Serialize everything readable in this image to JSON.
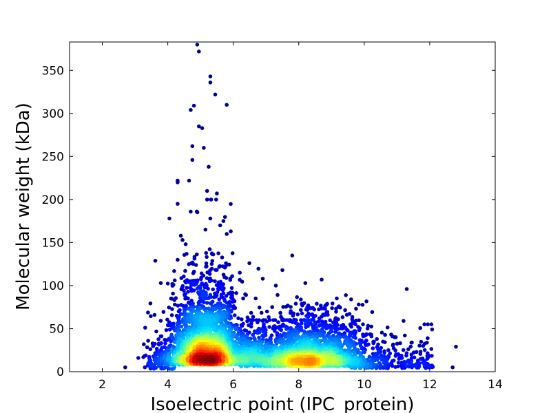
{
  "chart_data": {
    "type": "scatter",
    "title": "",
    "xlabel": "Isoelectric point (IPC_protein)",
    "ylabel": "Molecular weight (kDa)",
    "xlim": [
      1,
      14
    ],
    "ylim": [
      0,
      383
    ],
    "xticks": [
      "2",
      "4",
      "6",
      "8",
      "10",
      "12",
      "14"
    ],
    "yticks": [
      "0",
      "50",
      "100",
      "150",
      "200",
      "250",
      "300",
      "350"
    ],
    "grid": false,
    "legend": "none",
    "colormap": [
      "#00007f",
      "#0000ff",
      "#0080ff",
      "#00e0ff",
      "#80ff80",
      "#ffff00",
      "#ff8000",
      "#ff0000",
      "#7f0000"
    ],
    "clusters": [
      {
        "center_x": 5.2,
        "center_y": 30,
        "peak_density": 1.0
      },
      {
        "center_x": 8.6,
        "center_y": 25,
        "peak_density": 0.55
      }
    ],
    "outliers": [
      {
        "x": 4.9,
        "y": 380
      },
      {
        "x": 4.95,
        "y": 372
      },
      {
        "x": 5.3,
        "y": 343
      },
      {
        "x": 5.3,
        "y": 336
      },
      {
        "x": 5.45,
        "y": 322
      },
      {
        "x": 5.8,
        "y": 310
      },
      {
        "x": 4.8,
        "y": 309
      },
      {
        "x": 4.7,
        "y": 304
      },
      {
        "x": 4.95,
        "y": 285
      },
      {
        "x": 5.05,
        "y": 283
      },
      {
        "x": 4.75,
        "y": 262
      },
      {
        "x": 5.1,
        "y": 260
      },
      {
        "x": 4.75,
        "y": 246
      },
      {
        "x": 5.25,
        "y": 238
      },
      {
        "x": 4.3,
        "y": 222
      },
      {
        "x": 4.3,
        "y": 220
      },
      {
        "x": 4.65,
        "y": 222
      },
      {
        "x": 5.2,
        "y": 210
      },
      {
        "x": 5.5,
        "y": 207
      },
      {
        "x": 5.2,
        "y": 200
      },
      {
        "x": 4.3,
        "y": 195
      },
      {
        "x": 4.05,
        "y": 178
      },
      {
        "x": 4.7,
        "y": 186
      },
      {
        "x": 5.3,
        "y": 178
      },
      {
        "x": 5.7,
        "y": 175
      },
      {
        "x": 5.6,
        "y": 170
      },
      {
        "x": 4.4,
        "y": 158
      },
      {
        "x": 4.45,
        "y": 153
      },
      {
        "x": 5.8,
        "y": 160
      },
      {
        "x": 7.8,
        "y": 135
      },
      {
        "x": 4.3,
        "y": 130
      },
      {
        "x": 6.2,
        "y": 115
      },
      {
        "x": 7.5,
        "y": 118
      },
      {
        "x": 6.9,
        "y": 108
      },
      {
        "x": 8.7,
        "y": 107
      },
      {
        "x": 8.2,
        "y": 103
      },
      {
        "x": 11.3,
        "y": 96
      },
      {
        "x": 7.3,
        "y": 100
      },
      {
        "x": 4.1,
        "y": 85
      },
      {
        "x": 9.6,
        "y": 84
      },
      {
        "x": 11.2,
        "y": 59
      },
      {
        "x": 2.7,
        "y": 5
      },
      {
        "x": 3.4,
        "y": 36
      },
      {
        "x": 12.7,
        "y": 5
      },
      {
        "x": 12.8,
        "y": 29
      },
      {
        "x": 11.8,
        "y": 30
      },
      {
        "x": 3.1,
        "y": 16
      }
    ]
  }
}
